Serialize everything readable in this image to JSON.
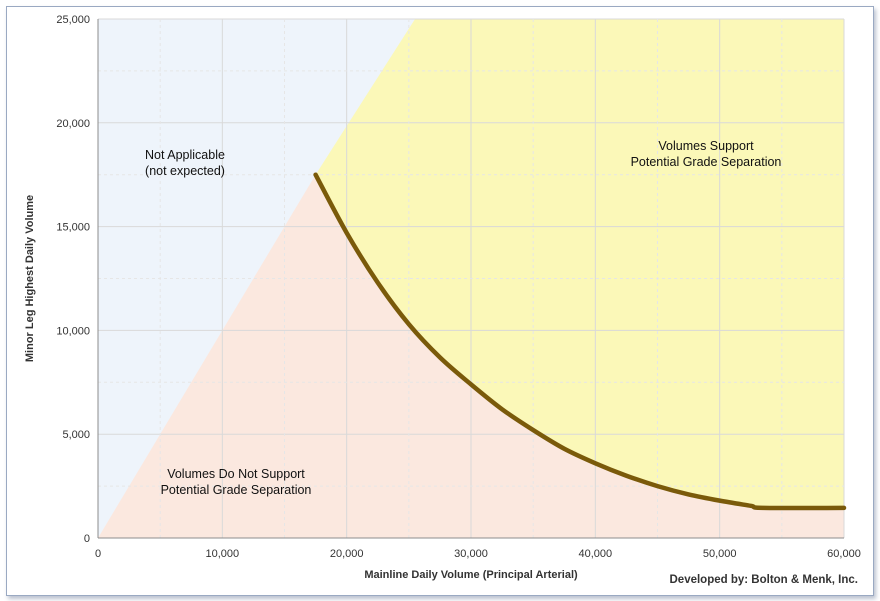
{
  "chart_data": {
    "type": "area",
    "xlabel": "Mainline Daily Volume (Principal Arterial)",
    "ylabel": "Minor Leg Highest Daily Volume",
    "xlim": [
      0,
      60000
    ],
    "ylim": [
      0,
      25000
    ],
    "x_ticks": [
      "0",
      "10,000",
      "20,000",
      "30,000",
      "40,000",
      "50,000",
      "60,000"
    ],
    "y_ticks": [
      "0",
      "5,000",
      "10,000",
      "15,000",
      "20,000",
      "25,000"
    ],
    "grid": true,
    "regions": [
      {
        "label_lines": [
          "Not Applicable",
          "(not expected)"
        ],
        "color": "#eef4fb"
      },
      {
        "label_lines": [
          "Volumes Support",
          "Potential Grade Separation"
        ],
        "color": "#fbf8b8"
      },
      {
        "label_lines": [
          "Volumes Do Not Support",
          "Potential Grade Separation"
        ],
        "color": "#fbe8df"
      }
    ],
    "boundary_line_color": "#7a5a0a",
    "diagonal": {
      "x": [
        0,
        25500
      ],
      "y": [
        0,
        25000
      ]
    },
    "threshold_curve": {
      "x": [
        17500,
        20000,
        22500,
        25000,
        27500,
        30000,
        32500,
        35000,
        37500,
        40000,
        42500,
        45000,
        47500,
        50000,
        52500,
        53500,
        60000
      ],
      "y": [
        17500,
        14700,
        12300,
        10300,
        8700,
        7400,
        6200,
        5200,
        4300,
        3600,
        3000,
        2500,
        2100,
        1800,
        1550,
        1450,
        1450
      ]
    }
  },
  "credit": "Developed by: Bolton & Menk, Inc."
}
